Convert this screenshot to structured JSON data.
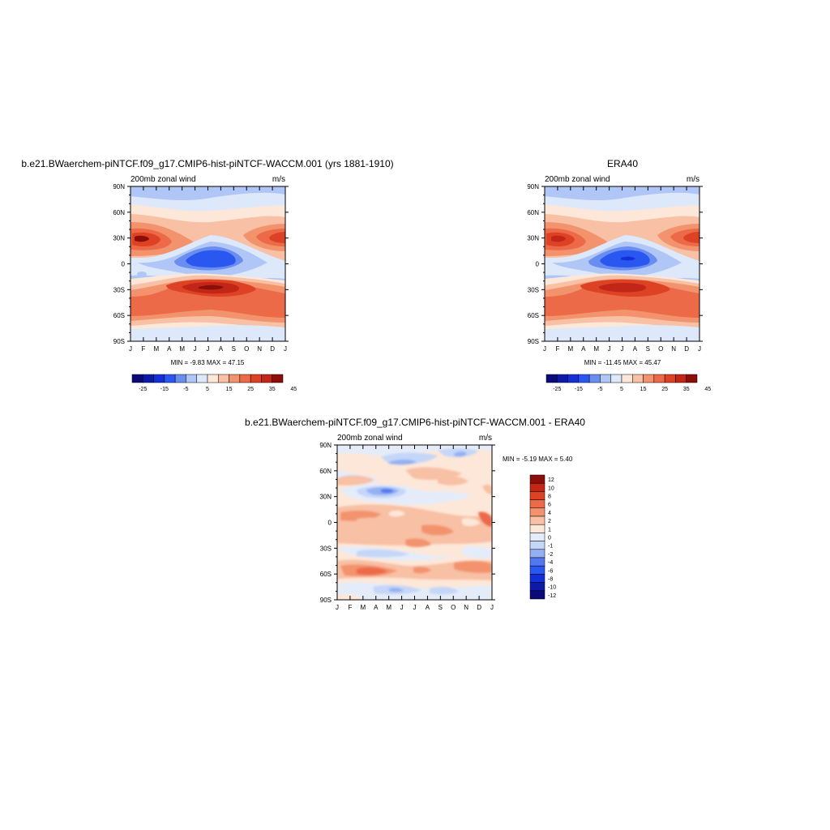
{
  "colors": {
    "levels_abs": [
      "#0a0a78",
      "#0d1aa8",
      "#1330d8",
      "#2a57f0",
      "#6a8ef0",
      "#b0c6f6",
      "#dde8fa",
      "#fde7d8",
      "#f8c0a4",
      "#f3936e",
      "#ec6a48",
      "#dd4224",
      "#c22616",
      "#8c0e08"
    ],
    "levels_diff": [
      "#0a0a78",
      "#0d1aa8",
      "#1330d8",
      "#2a57f0",
      "#5278f0",
      "#93b0f4",
      "#c5d6f8",
      "#e4ecfa",
      "#fde7d8",
      "#f8c0a4",
      "#f3936e",
      "#ec6a48",
      "#dd4224",
      "#c22616",
      "#8c0e08"
    ]
  },
  "chart_data": [
    {
      "type": "heatmap",
      "title": "b.e21.BWaerchem-piNTCF.f09_g17.CMIP6-hist-piNTCF-WACCM.001 (yrs 1881-1910)",
      "left_label": "200mb zonal wind",
      "right_label": "m/s",
      "x_ticks": [
        "J",
        "F",
        "M",
        "A",
        "M",
        "J",
        "J",
        "A",
        "S",
        "O",
        "N",
        "D",
        "J"
      ],
      "y_ticks": [
        "90N",
        "60N",
        "30N",
        "0",
        "30S",
        "60S",
        "90S"
      ],
      "minmax": "MIN =  -9.83 MAX =  47.15",
      "colorbar_labels": [
        "-25",
        "-15",
        "-5",
        "5",
        "15",
        "25",
        "35",
        "45"
      ],
      "min": -9.83,
      "max": 47.15
    },
    {
      "type": "heatmap",
      "title": "ERA40",
      "left_label": "200mb zonal wind",
      "right_label": "m/s",
      "x_ticks": [
        "J",
        "F",
        "M",
        "A",
        "M",
        "J",
        "J",
        "A",
        "S",
        "O",
        "N",
        "D",
        "J"
      ],
      "y_ticks": [
        "90N",
        "60N",
        "30N",
        "0",
        "30S",
        "60S",
        "90S"
      ],
      "minmax": "MIN = -11.45 MAX =  45.47",
      "colorbar_labels": [
        "-25",
        "-15",
        "-5",
        "5",
        "15",
        "25",
        "35",
        "45"
      ],
      "min": -11.45,
      "max": 45.47
    },
    {
      "type": "heatmap",
      "title": "b.e21.BWaerchem-piNTCF.f09_g17.CMIP6-hist-piNTCF-WACCM.001 - ERA40",
      "left_label": "200mb zonal wind",
      "right_label": "m/s",
      "x_ticks": [
        "J",
        "F",
        "M",
        "A",
        "M",
        "J",
        "J",
        "A",
        "S",
        "O",
        "N",
        "D",
        "J"
      ],
      "y_ticks": [
        "90N",
        "60N",
        "30N",
        "0",
        "30S",
        "60S",
        "90S"
      ],
      "minmax": "MIN =  -5.19 MAX =   5.40",
      "colorbar_labels": [
        "12",
        "10",
        "8",
        "6",
        "4",
        "2",
        "1",
        "0",
        "-1",
        "-2",
        "-4",
        "-6",
        "-8",
        "-10",
        "-12"
      ],
      "min": -5.19,
      "max": 5.4
    }
  ]
}
